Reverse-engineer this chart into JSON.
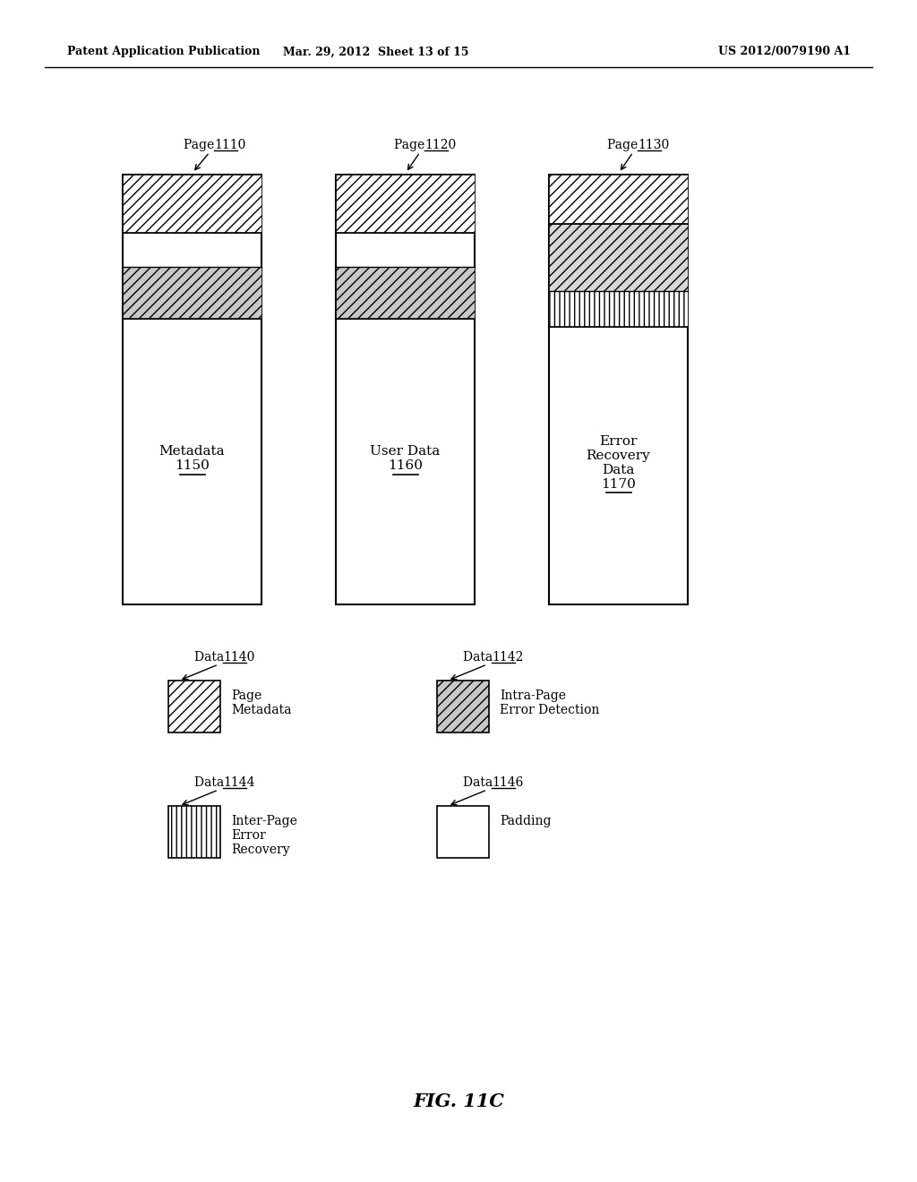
{
  "header_left": "Patent Application Publication",
  "header_mid": "Mar. 29, 2012  Sheet 13 of 15",
  "header_right": "US 2012/0079190 A1",
  "fig_label": "FIG. 11C",
  "bg_color": "#ffffff",
  "page_labels": [
    "Page 1110",
    "Page 1120",
    "Page 1130"
  ],
  "page_body_labels": [
    "Metadata\n1150",
    "User Data\n1160",
    "Error\nRecovery\nData\n1170"
  ],
  "page_number_underline": [
    "1150",
    "1160",
    "1170"
  ],
  "legend_rows": [
    {
      "label": "Data 1140",
      "number": "1140",
      "desc": "Page\nMetadata",
      "hatch": "///",
      "facecolor": "white"
    },
    {
      "label": "Data 1142",
      "number": "1142",
      "desc": "Intra-Page\nError Detection",
      "hatch": "///",
      "facecolor": "#d0d0d0"
    },
    {
      "label": "Data 1144",
      "number": "1144",
      "desc": "Inter-Page\nError\nRecovery",
      "hatch": "|||",
      "facecolor": "white"
    },
    {
      "label": "Data 1146",
      "number": "1146",
      "desc": "Padding",
      "hatch": "",
      "facecolor": "white"
    }
  ]
}
